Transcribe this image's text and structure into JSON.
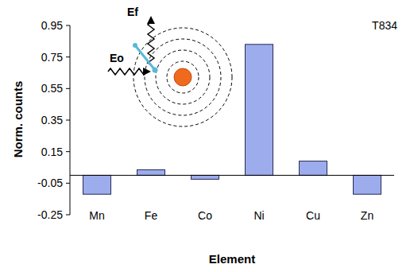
{
  "chart_data": {
    "type": "bar",
    "x_label": "Element",
    "y_label": "Norm. counts",
    "annotations": [
      "T834",
      "Eo",
      "Ef"
    ],
    "categories": [
      "Mn",
      "Fe",
      "Co",
      "Ni",
      "Cu",
      "Zn"
    ],
    "values": [
      -0.12,
      0.035,
      -0.025,
      0.83,
      0.09,
      -0.12
    ],
    "color": "#9dacec",
    "ylim": [
      -0.25,
      0.95
    ],
    "yticks": [
      -0.25,
      -0.05,
      0.15,
      0.35,
      0.55,
      0.75,
      0.95
    ],
    "grid": false
  }
}
